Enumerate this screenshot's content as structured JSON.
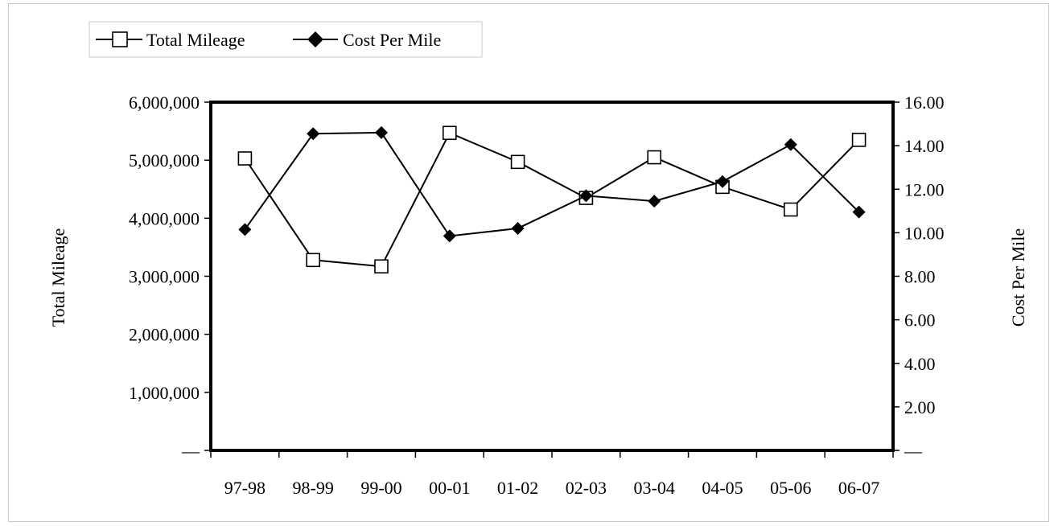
{
  "chart_data": {
    "type": "line",
    "title": "",
    "xlabel": "",
    "categories": [
      "97-98",
      "98-99",
      "99-00",
      "00-01",
      "01-02",
      "02-03",
      "03-04",
      "04-05",
      "05-06",
      "06-07"
    ],
    "y_left": {
      "label": "Total Mileage",
      "ylim": [
        0,
        6000000
      ],
      "ticks": [
        0,
        1000000,
        2000000,
        3000000,
        4000000,
        5000000,
        6000000
      ],
      "tick_labels": [
        "—",
        "1,000,000",
        "2,000,000",
        "3,000,000",
        "4,000,000",
        "5,000,000",
        "6,000,000"
      ]
    },
    "y_right": {
      "label": "Cost Per Mile",
      "ylim": [
        0,
        16
      ],
      "ticks": [
        0,
        2,
        4,
        6,
        8,
        10,
        12,
        14,
        16
      ],
      "tick_labels": [
        "—",
        "2.00",
        "4.00",
        "6.00",
        "8.00",
        "10.00",
        "12.00",
        "14.00",
        "16.00"
      ]
    },
    "series": [
      {
        "name": "Total Mileage",
        "axis": "left",
        "marker": "open-square",
        "color": "#000000",
        "values": [
          5030000,
          3280000,
          3170000,
          5470000,
          4970000,
          4350000,
          5050000,
          4540000,
          4150000,
          5350000
        ]
      },
      {
        "name": "Cost Per Mile",
        "axis": "right",
        "marker": "filled-diamond",
        "color": "#000000",
        "values": [
          10.15,
          14.55,
          14.6,
          9.85,
          10.2,
          11.7,
          11.45,
          12.35,
          14.05,
          10.95
        ]
      }
    ],
    "legend_position": "top-left",
    "grid": false
  }
}
